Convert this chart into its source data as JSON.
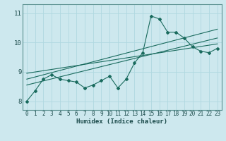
{
  "xlabel": "Humidex (Indice chaleur)",
  "bg_color": "#cde8ee",
  "grid_color": "#b0d8e0",
  "line_color": "#1a6b5e",
  "xlim": [
    -0.5,
    23.5
  ],
  "ylim": [
    7.7,
    11.3
  ],
  "yticks": [
    8,
    9,
    10,
    11
  ],
  "xticks": [
    0,
    1,
    2,
    3,
    4,
    5,
    6,
    7,
    8,
    9,
    10,
    11,
    12,
    13,
    14,
    15,
    16,
    17,
    18,
    19,
    20,
    21,
    22,
    23
  ],
  "line1_x": [
    0,
    1,
    2,
    3,
    4,
    5,
    6,
    7,
    8,
    9,
    10,
    11,
    12,
    13,
    14,
    15,
    16,
    17,
    18,
    19,
    20,
    21,
    22,
    23
  ],
  "line1_y": [
    8.0,
    8.35,
    8.75,
    8.9,
    8.75,
    8.7,
    8.65,
    8.45,
    8.55,
    8.7,
    8.85,
    8.45,
    8.75,
    9.3,
    9.65,
    10.9,
    10.8,
    10.35,
    10.35,
    10.15,
    9.85,
    9.7,
    9.65,
    9.8
  ],
  "line2_x": [
    0,
    23
  ],
  "line2_y": [
    8.55,
    10.15
  ],
  "line3_x": [
    0,
    23
  ],
  "line3_y": [
    8.75,
    10.45
  ],
  "line4_x": [
    0,
    23
  ],
  "line4_y": [
    8.95,
    9.95
  ]
}
